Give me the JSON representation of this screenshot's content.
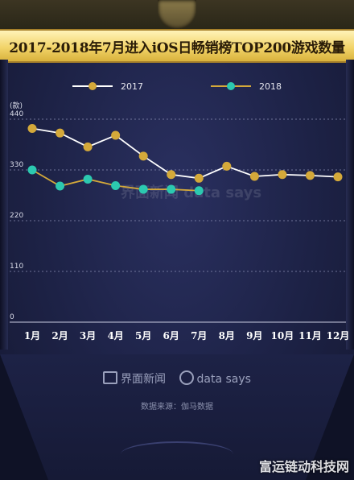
{
  "title": "2017-2018年7月进入iOS日畅销榜TOP200游戏数量",
  "legend": [
    {
      "label": "2017",
      "color": "#d4a93a"
    },
    {
      "label": "2018",
      "color": "#2cc9b0"
    }
  ],
  "watermark_text": "界面新闻 data says",
  "footer": {
    "brand1": "界面新闻",
    "brand2": "data says",
    "source": "数据来源：伽马数据"
  },
  "corner_watermark": "富运链动科技网",
  "chart_data": {
    "type": "line",
    "title": "2017-2018年7月进入iOS日畅销榜TOP200游戏数量",
    "ylabel": "(款)",
    "xlabel": "",
    "categories": [
      "1月",
      "2月",
      "3月",
      "4月",
      "5月",
      "6月",
      "7月",
      "8月",
      "9月",
      "10月",
      "11月",
      "12月"
    ],
    "yticks": [
      0,
      110,
      220,
      330,
      440
    ],
    "ylim": [
      0,
      440
    ],
    "grid": true,
    "legend_position": "top",
    "series": [
      {
        "name": "2017",
        "color": "#d4a93a",
        "line_color": "#ffffff",
        "values": [
          420,
          410,
          380,
          405,
          360,
          320,
          312,
          338,
          316,
          320,
          318,
          315
        ]
      },
      {
        "name": "2018",
        "color": "#2cc9b0",
        "line_color": "#d4a93a",
        "values": [
          330,
          295,
          310,
          296,
          288,
          288,
          285,
          null,
          null,
          null,
          null,
          null
        ]
      }
    ]
  }
}
